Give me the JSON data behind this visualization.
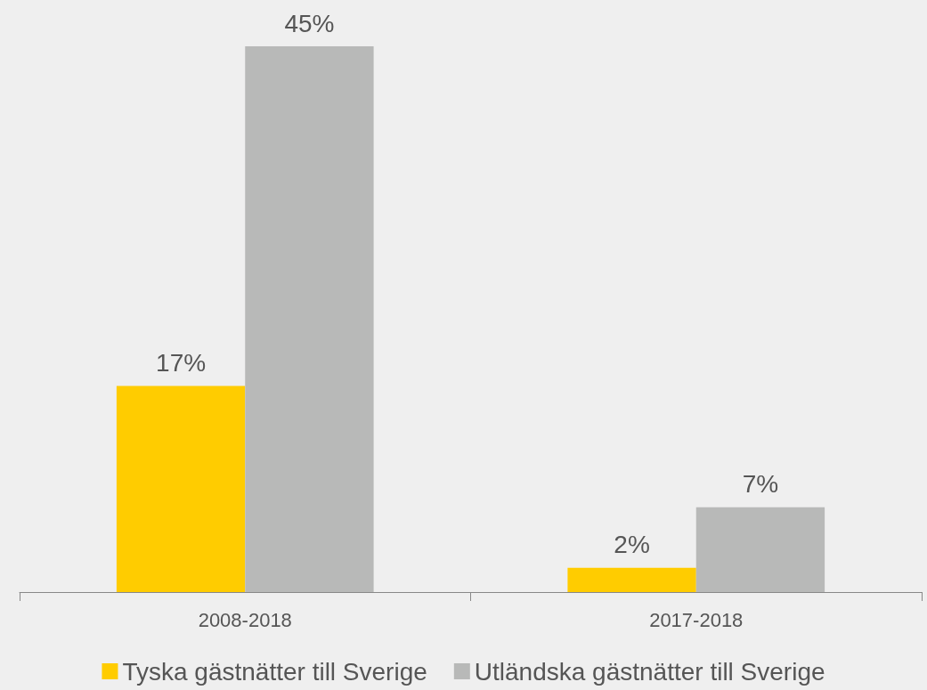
{
  "chart_data": {
    "type": "bar",
    "categories": [
      "2008-2018",
      "2017-2018"
    ],
    "series": [
      {
        "name": "Tyska gästnätter till Sverige",
        "color": "#ffcc00",
        "values": [
          17,
          2
        ],
        "value_labels": [
          "17%",
          "2%"
        ]
      },
      {
        "name": "Utländska gästnätter till Sverige",
        "color": "#b8b9b8",
        "values": [
          45,
          7
        ],
        "value_labels": [
          "45%",
          "7%"
        ]
      }
    ],
    "legend": "bottom"
  }
}
